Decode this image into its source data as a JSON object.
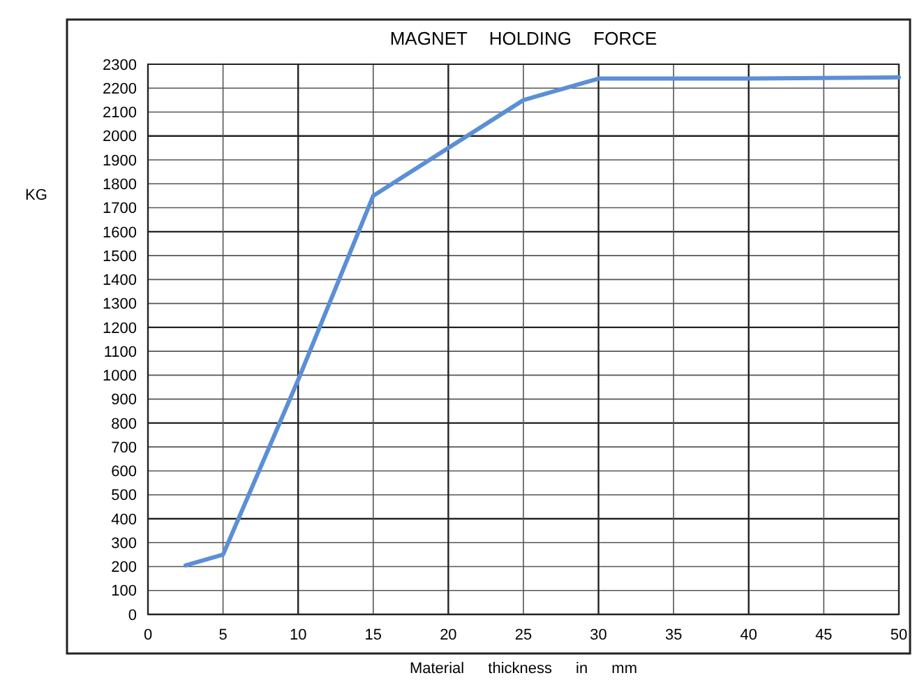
{
  "chart_data": {
    "type": "line",
    "title": "MAGNET HOLDING FORCE",
    "xlabel": "Material thickness in mm",
    "ylabel": "KG",
    "x": [
      2.5,
      5,
      10,
      15,
      25,
      30,
      40,
      50
    ],
    "series": [
      {
        "color": "#5b8fd6",
        "values": [
          205,
          250,
          980,
          1750,
          2150,
          2240,
          2240,
          2245
        ]
      }
    ],
    "xlim": [
      0,
      50
    ],
    "xticks": [
      0,
      5,
      10,
      15,
      20,
      25,
      30,
      35,
      40,
      45,
      50
    ],
    "ylim": [
      0,
      2300
    ],
    "yticks": [
      0,
      100,
      200,
      300,
      400,
      500,
      600,
      700,
      800,
      900,
      1000,
      1100,
      1200,
      1300,
      1400,
      1500,
      1600,
      1700,
      1800,
      1900,
      2000,
      2100,
      2200,
      2300
    ],
    "grid": true,
    "marker": "none",
    "line_style": "solid"
  }
}
